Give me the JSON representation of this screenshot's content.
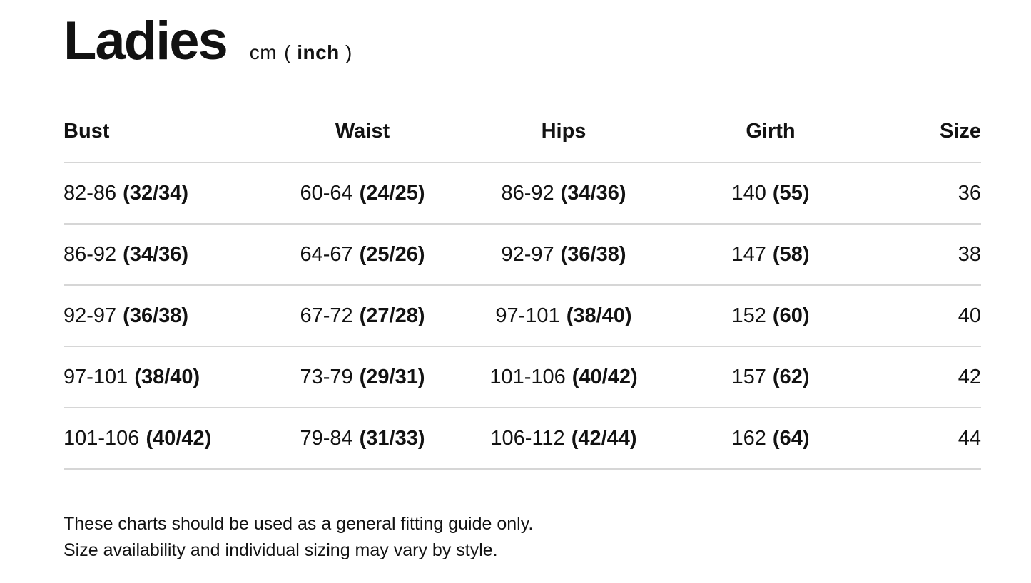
{
  "page": {
    "background": "#ffffff",
    "text_color": "#121212",
    "divider_color": "#d6d6d6"
  },
  "title": {
    "main": "Ladies",
    "unit": {
      "prefix": "cm",
      "open_paren": "( ",
      "emph": "inch",
      "close_paren": " )"
    }
  },
  "size_table": {
    "headers": [
      "Bust",
      "Waist",
      "Hips",
      "Girth",
      "Size"
    ],
    "rows": [
      {
        "bust": {
          "cm": "82-86",
          "inch": "(32/34)"
        },
        "waist": {
          "cm": "60-64",
          "inch": "(24/25)"
        },
        "hips": {
          "cm": "86-92",
          "inch": "(34/36)"
        },
        "girth": {
          "cm": "140",
          "inch": "(55)"
        },
        "size": "36"
      },
      {
        "bust": {
          "cm": "86-92",
          "inch": "(34/36)"
        },
        "waist": {
          "cm": "64-67",
          "inch": "(25/26)"
        },
        "hips": {
          "cm": "92-97",
          "inch": "(36/38)"
        },
        "girth": {
          "cm": "147",
          "inch": "(58)"
        },
        "size": "38"
      },
      {
        "bust": {
          "cm": "92-97",
          "inch": "(36/38)"
        },
        "waist": {
          "cm": "67-72",
          "inch": "(27/28)"
        },
        "hips": {
          "cm": "97-101",
          "inch": "(38/40)"
        },
        "girth": {
          "cm": "152",
          "inch": "(60)"
        },
        "size": "40"
      },
      {
        "bust": {
          "cm": "97-101",
          "inch": "(38/40)"
        },
        "waist": {
          "cm": "73-79",
          "inch": "(29/31)"
        },
        "hips": {
          "cm": "101-106",
          "inch": "(40/42)"
        },
        "girth": {
          "cm": "157",
          "inch": "(62)"
        },
        "size": "42"
      },
      {
        "bust": {
          "cm": "101-106",
          "inch": "(40/42)"
        },
        "waist": {
          "cm": "79-84",
          "inch": "(31/33)"
        },
        "hips": {
          "cm": "106-112",
          "inch": "(42/44)"
        },
        "girth": {
          "cm": "162",
          "inch": "(64)"
        },
        "size": "44"
      }
    ]
  },
  "footnote": {
    "line1": "These charts should be used as a general fitting guide only.",
    "line2": "Size availability and individual sizing may vary by style."
  }
}
